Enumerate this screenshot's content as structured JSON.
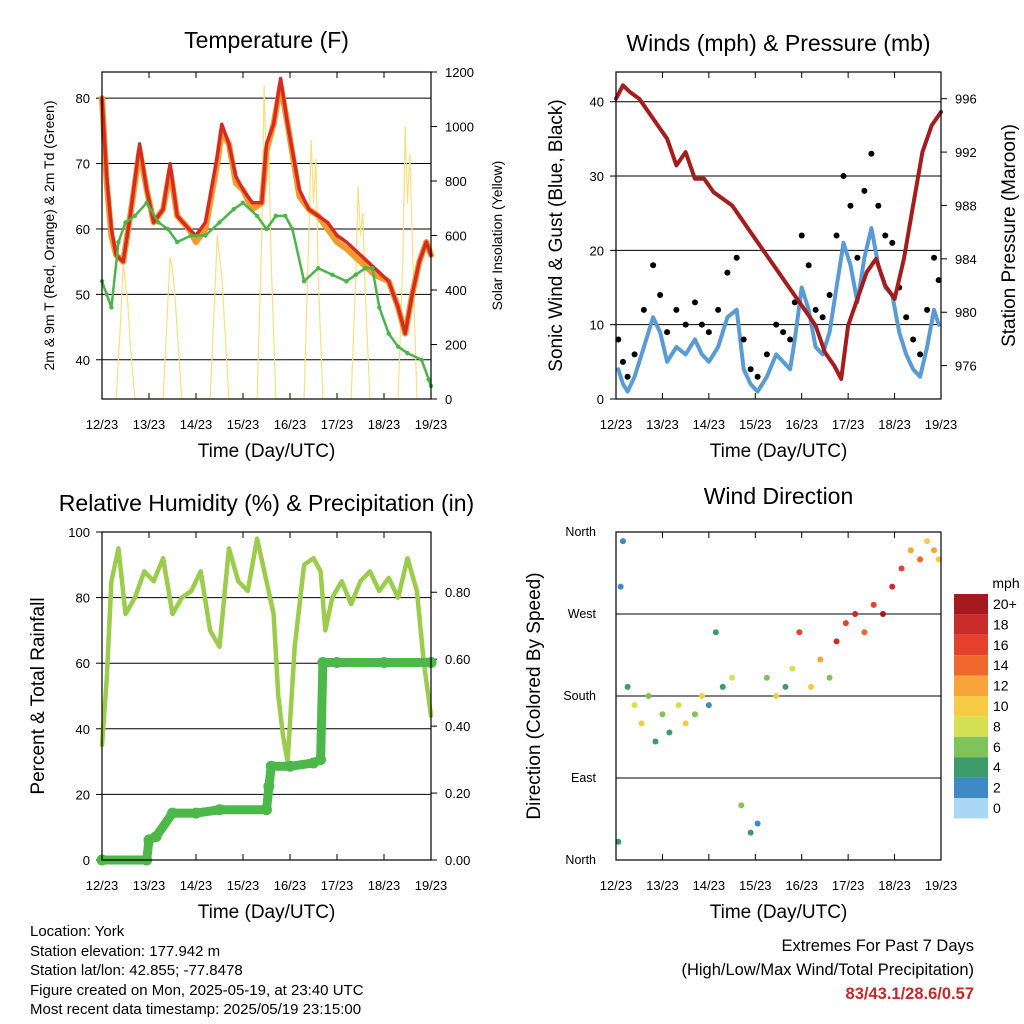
{
  "chart_data": [
    {
      "type": "line",
      "title": "Temperature (F)",
      "xlabel": "Time (Day/UTC)",
      "ylabel": "2m & 9m T (Red, Orange) & 2m Td (Green)",
      "ylabel_right": "Solar Insolation (Yellow)",
      "x_ticks": [
        "12/23",
        "13/23",
        "14/23",
        "15/23",
        "16/23",
        "17/23",
        "18/23",
        "19/23"
      ],
      "xlim_days": [
        0,
        7
      ],
      "ylim": [
        34,
        84
      ],
      "y_ticks": [
        40,
        50,
        60,
        70,
        80
      ],
      "ylim_right": [
        0,
        1200
      ],
      "y_ticks_right": [
        0,
        200,
        400,
        600,
        800,
        1000,
        1200
      ],
      "grid": true,
      "series": [
        {
          "axis": "left",
          "color": "#f39a2a",
          "x": [
            0,
            0.1,
            0.2,
            0.3,
            0.45,
            0.6,
            0.8,
            0.95,
            1.1,
            1.3,
            1.45,
            1.6,
            1.85,
            2.0,
            2.2,
            2.45,
            2.55,
            2.7,
            2.85,
            3.0,
            3.2,
            3.4,
            3.5,
            3.65,
            3.8,
            3.95,
            4.2,
            4.4,
            4.6,
            4.8,
            5.0,
            5.2,
            5.5,
            5.8,
            6.1,
            6.3,
            6.45,
            6.6,
            6.75,
            6.9,
            7.0
          ],
          "values": [
            80,
            67,
            59,
            56,
            55,
            62,
            72,
            66,
            61,
            63,
            69,
            62,
            60,
            58,
            60,
            70,
            75,
            73,
            67,
            66,
            63,
            64,
            72,
            76,
            82,
            76,
            65,
            63,
            62,
            60,
            58,
            57,
            55,
            53,
            52,
            48,
            44,
            50,
            55,
            58,
            56
          ]
        },
        {
          "axis": "left",
          "color": "#d62a24",
          "x": [
            0,
            0.1,
            0.2,
            0.3,
            0.45,
            0.6,
            0.8,
            0.95,
            1.1,
            1.3,
            1.45,
            1.6,
            1.85,
            2.0,
            2.2,
            2.45,
            2.55,
            2.7,
            2.85,
            3.0,
            3.2,
            3.4,
            3.5,
            3.65,
            3.8,
            3.95,
            4.2,
            4.4,
            4.6,
            4.8,
            5.0,
            5.2,
            5.5,
            5.8,
            6.1,
            6.3,
            6.45,
            6.6,
            6.75,
            6.9,
            7.0
          ],
          "values": [
            80,
            68,
            60,
            56,
            55,
            62,
            73,
            66,
            61,
            63,
            70,
            62,
            60,
            59,
            61,
            71,
            76,
            73,
            68,
            66,
            64,
            64,
            73,
            76,
            83,
            76,
            66,
            63,
            62,
            61,
            59,
            58,
            56,
            54,
            52,
            48,
            44,
            50,
            55,
            58,
            56
          ]
        },
        {
          "axis": "left",
          "color": "#4cb44a",
          "x": [
            0,
            0.1,
            0.2,
            0.35,
            0.5,
            0.7,
            0.95,
            1.2,
            1.4,
            1.6,
            1.9,
            2.2,
            2.5,
            2.8,
            3.0,
            3.3,
            3.5,
            3.7,
            3.9,
            4.05,
            4.3,
            4.6,
            4.9,
            5.2,
            5.4,
            5.6,
            5.75,
            5.9,
            6.1,
            6.3,
            6.5,
            6.8,
            6.95,
            7.0
          ],
          "values": [
            52,
            50,
            48,
            58,
            61,
            62,
            64,
            61,
            60,
            58,
            59,
            59,
            61,
            63,
            64,
            62,
            60,
            62,
            62,
            60,
            52,
            54,
            53,
            52,
            53,
            54,
            54,
            48,
            44,
            42,
            41,
            40,
            37,
            36
          ]
        },
        {
          "axis": "right",
          "color": "#f7e081",
          "x": [
            0.3,
            0.4,
            0.45,
            0.5,
            0.55,
            0.6,
            0.7,
            1.3,
            1.4,
            1.45,
            1.5,
            1.55,
            1.6,
            1.7,
            2.3,
            2.4,
            2.45,
            2.5,
            2.55,
            2.6,
            2.7,
            3.3,
            3.4,
            3.45,
            3.5,
            3.55,
            3.6,
            3.7,
            4.3,
            4.4,
            4.45,
            4.5,
            4.55,
            4.6,
            4.7,
            5.3,
            5.4,
            5.45,
            5.5,
            5.55,
            5.6,
            5.7,
            6.3,
            6.4,
            6.45,
            6.5,
            6.55,
            6.6,
            6.7
          ],
          "values": [
            0,
            300,
            500,
            420,
            350,
            200,
            0,
            0,
            350,
            520,
            480,
            380,
            250,
            0,
            0,
            380,
            600,
            520,
            450,
            300,
            0,
            0,
            600,
            1150,
            800,
            900,
            500,
            0,
            0,
            600,
            950,
            720,
            880,
            450,
            0,
            0,
            450,
            780,
            600,
            680,
            400,
            0,
            0,
            500,
            1000,
            720,
            900,
            600,
            0
          ]
        }
      ]
    },
    {
      "type": "scatter",
      "title": "Winds (mph) & Pressure (mb)",
      "xlabel": "Time (Day/UTC)",
      "ylabel": "Sonic Wind & Gust (Blue, Black)",
      "ylabel_right": "Station Pressure (Maroon)",
      "x_ticks": [
        "12/23",
        "13/23",
        "14/23",
        "15/23",
        "16/23",
        "17/23",
        "18/23",
        "19/23"
      ],
      "xlim_days": [
        0,
        7
      ],
      "ylim": [
        0,
        44
      ],
      "y_ticks": [
        0,
        10,
        20,
        30,
        40
      ],
      "ylim_right": [
        973.5,
        998
      ],
      "y_ticks_right": [
        976,
        980,
        984,
        988,
        992,
        996
      ],
      "grid": true,
      "series": [
        {
          "axis": "left",
          "color": "#000000",
          "x": [
            0.05,
            0.15,
            0.25,
            0.4,
            0.6,
            0.8,
            0.95,
            1.1,
            1.3,
            1.5,
            1.7,
            1.85,
            2.0,
            2.2,
            2.4,
            2.6,
            2.75,
            2.9,
            3.05,
            3.25,
            3.45,
            3.6,
            3.75,
            3.85,
            4.0,
            4.15,
            4.3,
            4.45,
            4.6,
            4.75,
            4.9,
            5.05,
            5.2,
            5.35,
            5.5,
            5.65,
            5.8,
            5.95,
            6.1,
            6.25,
            6.4,
            6.55,
            6.7,
            6.85,
            6.95
          ],
          "values": [
            8,
            5,
            3,
            6,
            12,
            18,
            14,
            9,
            12,
            10,
            13,
            10,
            9,
            12,
            17,
            19,
            8,
            4,
            3,
            6,
            10,
            9,
            8,
            13,
            22,
            18,
            12,
            11,
            14,
            22,
            30,
            26,
            19,
            28,
            33,
            26,
            22,
            21,
            15,
            11,
            8,
            6,
            12,
            19,
            16
          ]
        },
        {
          "axis": "left",
          "color": "#5a9bd5",
          "x": [
            0.05,
            0.15,
            0.25,
            0.4,
            0.6,
            0.8,
            0.95,
            1.1,
            1.3,
            1.5,
            1.7,
            1.85,
            2.0,
            2.2,
            2.4,
            2.6,
            2.75,
            2.9,
            3.05,
            3.25,
            3.45,
            3.6,
            3.75,
            3.85,
            4.0,
            4.15,
            4.3,
            4.45,
            4.6,
            4.75,
            4.9,
            5.05,
            5.2,
            5.35,
            5.5,
            5.65,
            5.8,
            5.95,
            6.1,
            6.25,
            6.4,
            6.55,
            6.7,
            6.85,
            6.95
          ],
          "values": [
            4,
            2,
            1,
            3,
            7,
            11,
            9,
            5,
            7,
            6,
            8,
            6,
            5,
            7,
            11,
            12,
            4,
            2,
            1,
            3,
            6,
            5,
            4,
            8,
            15,
            12,
            7,
            6,
            9,
            15,
            21,
            18,
            13,
            19,
            23,
            18,
            15,
            14,
            9,
            6,
            4,
            3,
            7,
            12,
            10
          ]
        },
        {
          "axis": "right",
          "color": "#a51c1c",
          "x": [
            0,
            0.15,
            0.3,
            0.5,
            0.7,
            0.9,
            1.1,
            1.3,
            1.5,
            1.7,
            1.9,
            2.1,
            2.3,
            2.5,
            2.7,
            2.9,
            3.1,
            3.3,
            3.5,
            3.7,
            3.9,
            4.1,
            4.3,
            4.5,
            4.7,
            4.85,
            5.0,
            5.2,
            5.4,
            5.6,
            5.8,
            6.0,
            6.2,
            6.4,
            6.6,
            6.8,
            7.0
          ],
          "values": [
            996,
            997,
            996.5,
            996,
            995,
            994,
            993,
            991,
            992,
            990,
            990,
            989,
            988.5,
            988,
            987,
            986,
            985,
            984,
            983,
            982,
            981,
            980,
            979,
            977,
            976,
            975,
            979,
            981,
            983,
            984,
            982,
            981,
            984,
            988,
            992,
            994,
            995
          ]
        }
      ]
    },
    {
      "type": "line",
      "title": "Relative Humidity (%) & Precipitation (in)",
      "xlabel": "Time (Day/UTC)",
      "ylabel": "Percent & Total Rainfall",
      "x_ticks": [
        "12/23",
        "13/23",
        "14/23",
        "15/23",
        "16/23",
        "17/23",
        "18/23",
        "19/23"
      ],
      "xlim_days": [
        0,
        7
      ],
      "ylim": [
        0,
        100
      ],
      "y_ticks": [
        0,
        20,
        40,
        60,
        80,
        100
      ],
      "ylim_right": [
        0,
        0.98
      ],
      "y_ticks_right": [
        0.0,
        0.2,
        0.4,
        0.6,
        0.8
      ],
      "grid": true,
      "series": [
        {
          "axis": "left",
          "color": "#9ccc4c",
          "x": [
            0,
            0.1,
            0.2,
            0.35,
            0.5,
            0.7,
            0.9,
            1.1,
            1.3,
            1.5,
            1.7,
            1.9,
            2.1,
            2.3,
            2.5,
            2.7,
            2.9,
            3.1,
            3.3,
            3.5,
            3.65,
            3.75,
            3.85,
            3.95,
            4.1,
            4.3,
            4.5,
            4.65,
            4.75,
            4.9,
            5.1,
            5.3,
            5.5,
            5.7,
            5.9,
            6.1,
            6.3,
            6.5,
            6.7,
            6.85,
            7.0
          ],
          "values": [
            35,
            55,
            85,
            95,
            75,
            80,
            88,
            85,
            92,
            75,
            80,
            82,
            88,
            70,
            65,
            95,
            85,
            82,
            98,
            85,
            75,
            50,
            38,
            30,
            65,
            90,
            92,
            88,
            70,
            80,
            85,
            78,
            85,
            88,
            82,
            86,
            80,
            92,
            82,
            60,
            44
          ]
        },
        {
          "axis": "right",
          "color": "#4cb84a",
          "x": [
            0,
            0.95,
            1.0,
            1.15,
            1.5,
            2.0,
            2.5,
            3.5,
            3.55,
            3.6,
            4.0,
            4.5,
            4.65,
            4.7,
            5.0,
            6.0,
            7.0
          ],
          "values": [
            0.0,
            0.0,
            0.06,
            0.07,
            0.14,
            0.14,
            0.15,
            0.15,
            0.22,
            0.28,
            0.28,
            0.29,
            0.3,
            0.59,
            0.59,
            0.59,
            0.59
          ]
        }
      ]
    },
    {
      "type": "scatter",
      "title": "Wind Direction",
      "xlabel": "Time (Day/UTC)",
      "ylabel": "Direction (Colored By Speed)",
      "x_ticks": [
        "12/23",
        "13/23",
        "14/23",
        "15/23",
        "16/23",
        "17/23",
        "18/23",
        "19/23"
      ],
      "xlim_days": [
        0,
        7
      ],
      "ylim": [
        0,
        360
      ],
      "y_ticks": [
        "North",
        "East",
        "South",
        "West",
        "North"
      ],
      "grid": true,
      "legend": {
        "title": "mph",
        "placement": "right",
        "labels": [
          "20+",
          "18",
          "16",
          "14",
          "12",
          "10",
          "8",
          "6",
          "4",
          "2",
          "0"
        ],
        "colors": [
          "#a6191f",
          "#c82c2a",
          "#e5402e",
          "#f0672c",
          "#f8a43a",
          "#f7cb45",
          "#d5e153",
          "#7fc35a",
          "#3d9b69",
          "#3f89c4",
          "#a9d7f4"
        ]
      },
      "series": [
        {
          "name": "direction",
          "x": [
            0.05,
            0.1,
            0.15,
            0.25,
            0.4,
            0.55,
            0.7,
            0.85,
            1.0,
            1.15,
            1.35,
            1.5,
            1.7,
            1.85,
            2.0,
            2.15,
            2.3,
            2.5,
            2.7,
            2.9,
            3.05,
            3.25,
            3.45,
            3.65,
            3.8,
            3.95,
            4.2,
            4.4,
            4.6,
            4.75,
            4.95,
            5.15,
            5.35,
            5.55,
            5.75,
            5.95,
            6.15,
            6.35,
            6.55,
            6.7,
            6.85,
            6.95
          ],
          "values": [
            20,
            300,
            350,
            190,
            170,
            150,
            180,
            130,
            160,
            140,
            170,
            150,
            160,
            180,
            170,
            250,
            190,
            200,
            60,
            30,
            40,
            200,
            180,
            190,
            210,
            250,
            190,
            220,
            200,
            240,
            260,
            270,
            250,
            280,
            270,
            300,
            320,
            340,
            330,
            350,
            340,
            330
          ],
          "speeds": [
            4,
            2,
            1,
            3,
            8,
            10,
            6,
            4,
            5,
            4,
            7,
            9,
            6,
            10,
            2,
            3,
            4,
            8,
            5,
            3,
            1,
            6,
            9,
            4,
            8,
            16,
            10,
            12,
            6,
            18,
            16,
            18,
            14,
            16,
            20,
            18,
            16,
            12,
            14,
            10,
            12,
            10
          ]
        }
      ]
    }
  ],
  "footer": {
    "location": "Location: York",
    "elevation": "Station elevation: 177.942 m",
    "latlon": "Station lat/lon: 42.855; -77.8478",
    "created": "Figure created on Mon, 2025-05-19, at 23:40 UTC",
    "recent": "Most recent data timestamp: 2025/05/19 23:15:00",
    "extremes_title": "Extremes For Past 7 Days",
    "extremes_sub": "(High/Low/Max Wind/Total Precipitation)",
    "extremes_values": "83/43.1/28.6/0.57"
  }
}
